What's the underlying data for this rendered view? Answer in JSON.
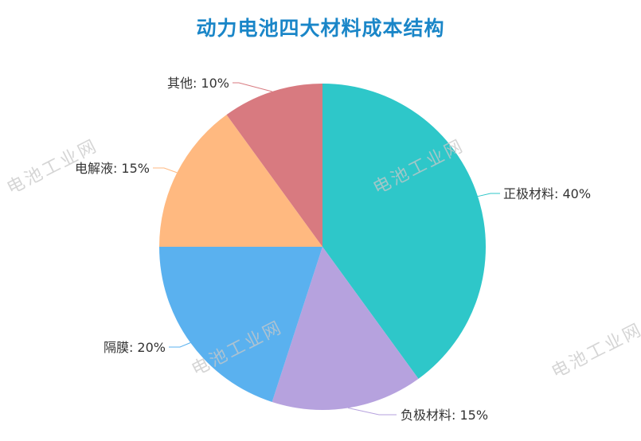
{
  "chart_data": {
    "type": "pie",
    "title": "动力电池四大材料成本结构",
    "slices": [
      {
        "label": "正极材料",
        "value": 40,
        "color": "#2ec7c9"
      },
      {
        "label": "负极材料",
        "value": 15,
        "color": "#b6a2de"
      },
      {
        "label": "隔膜",
        "value": 20,
        "color": "#5ab1ef"
      },
      {
        "label": "电解液",
        "value": 15,
        "color": "#ffb980"
      },
      {
        "label": "其他",
        "value": 10,
        "color": "#d87a80"
      }
    ]
  },
  "watermarks": [
    "电池工业网",
    "电池工业网",
    "电池工业网",
    "电池工业网"
  ]
}
